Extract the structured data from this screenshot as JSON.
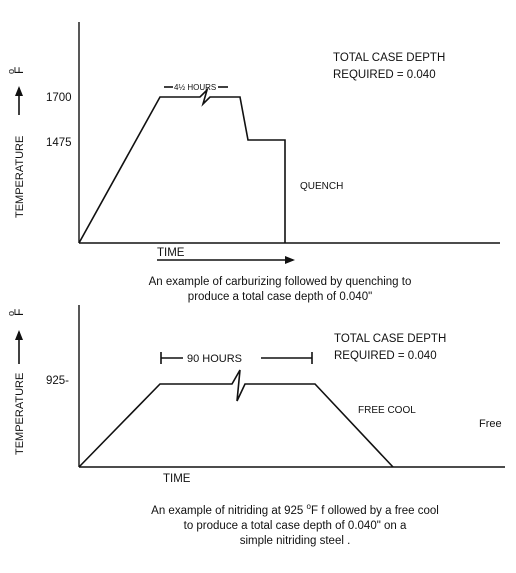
{
  "top": {
    "ylabel": "TEMPERATURE",
    "unit_deg": "o",
    "unit_letter": "F",
    "tick_1700": "1700",
    "tick_1475": "1475",
    "hold_label": "4½ HOURS",
    "note_line1": "TOTAL CASE DEPTH",
    "note_line2": "REQUIRED = 0.040",
    "quench_label": "QUENCH",
    "xlabel": "TIME",
    "caption_line1": "An example of carburizing followed by quenching to",
    "caption_line2": "produce a total case depth of 0.040\""
  },
  "bottom": {
    "ylabel": "TEMPERATURE",
    "unit_deg": "o",
    "unit_letter": "F",
    "tick_925": "925-",
    "hold_label": "90 HOURS",
    "note_line1": "TOTAL CASE DEPTH",
    "note_line2": "REQUIRED = 0.040",
    "free_cool_label": "FREE COOL",
    "free_label": "Free",
    "xlabel": "TIME",
    "caption_line1_a": "An example of nitriding at 925",
    "caption_deg": "o",
    "caption_line1_b": "F  f ollowed by a   free cool",
    "caption_line2": "to produce a total case depth of  0.040\"  on  a",
    "caption_line3": "simple nitriding steel ."
  }
}
